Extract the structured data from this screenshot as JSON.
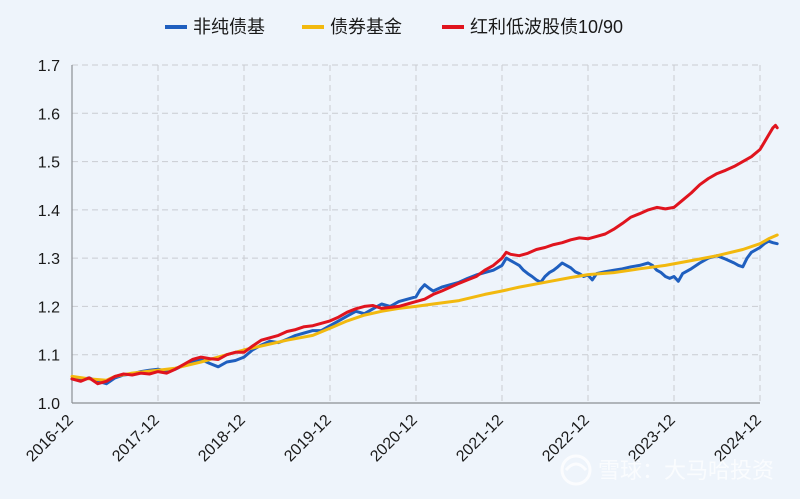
{
  "chart_data": {
    "type": "line",
    "title": "",
    "xlabel": "",
    "ylabel": "",
    "x_categories": [
      "2016-12",
      "2017-12",
      "2018-12",
      "2019-12",
      "2020-12",
      "2021-12",
      "2022-12",
      "2023-12",
      "2024-12"
    ],
    "ylim": [
      1.0,
      1.7
    ],
    "yticks": [
      "1.0",
      "1.1",
      "1.2",
      "1.3",
      "1.4",
      "1.5",
      "1.6",
      "1.7"
    ],
    "grid": true,
    "legend_position": "top",
    "series": [
      {
        "name": "非纯债基",
        "color": "#1f5fbf",
        "values": [
          [
            0.0,
            1.05
          ],
          [
            0.1,
            1.048
          ],
          [
            0.2,
            1.052
          ],
          [
            0.3,
            1.045
          ],
          [
            0.4,
            1.04
          ],
          [
            0.5,
            1.052
          ],
          [
            0.6,
            1.058
          ],
          [
            0.7,
            1.06
          ],
          [
            0.8,
            1.065
          ],
          [
            0.9,
            1.068
          ],
          [
            1.0,
            1.07
          ],
          [
            1.1,
            1.066
          ],
          [
            1.2,
            1.07
          ],
          [
            1.3,
            1.078
          ],
          [
            1.4,
            1.085
          ],
          [
            1.5,
            1.09
          ],
          [
            1.6,
            1.082
          ],
          [
            1.7,
            1.075
          ],
          [
            1.8,
            1.085
          ],
          [
            1.9,
            1.088
          ],
          [
            2.0,
            1.095
          ],
          [
            2.1,
            1.11
          ],
          [
            2.2,
            1.12
          ],
          [
            2.3,
            1.128
          ],
          [
            2.4,
            1.125
          ],
          [
            2.5,
            1.132
          ],
          [
            2.6,
            1.14
          ],
          [
            2.7,
            1.145
          ],
          [
            2.8,
            1.15
          ],
          [
            2.9,
            1.15
          ],
          [
            3.0,
            1.16
          ],
          [
            3.1,
            1.17
          ],
          [
            3.2,
            1.18
          ],
          [
            3.3,
            1.19
          ],
          [
            3.4,
            1.185
          ],
          [
            3.5,
            1.195
          ],
          [
            3.6,
            1.205
          ],
          [
            3.7,
            1.2
          ],
          [
            3.8,
            1.21
          ],
          [
            3.9,
            1.215
          ],
          [
            4.0,
            1.22
          ],
          [
            4.05,
            1.235
          ],
          [
            4.1,
            1.245
          ],
          [
            4.15,
            1.238
          ],
          [
            4.2,
            1.232
          ],
          [
            4.3,
            1.24
          ],
          [
            4.4,
            1.245
          ],
          [
            4.5,
            1.25
          ],
          [
            4.6,
            1.258
          ],
          [
            4.7,
            1.265
          ],
          [
            4.8,
            1.27
          ],
          [
            4.9,
            1.275
          ],
          [
            5.0,
            1.285
          ],
          [
            5.05,
            1.3
          ],
          [
            5.1,
            1.295
          ],
          [
            5.15,
            1.29
          ],
          [
            5.2,
            1.285
          ],
          [
            5.25,
            1.275
          ],
          [
            5.3,
            1.268
          ],
          [
            5.35,
            1.262
          ],
          [
            5.4,
            1.255
          ],
          [
            5.45,
            1.25
          ],
          [
            5.5,
            1.262
          ],
          [
            5.55,
            1.27
          ],
          [
            5.6,
            1.275
          ],
          [
            5.65,
            1.282
          ],
          [
            5.7,
            1.29
          ],
          [
            5.75,
            1.285
          ],
          [
            5.8,
            1.28
          ],
          [
            5.85,
            1.272
          ],
          [
            5.9,
            1.268
          ],
          [
            5.95,
            1.262
          ],
          [
            6.0,
            1.265
          ],
          [
            6.05,
            1.255
          ],
          [
            6.1,
            1.268
          ],
          [
            6.2,
            1.272
          ],
          [
            6.3,
            1.275
          ],
          [
            6.4,
            1.278
          ],
          [
            6.5,
            1.282
          ],
          [
            6.6,
            1.285
          ],
          [
            6.7,
            1.29
          ],
          [
            6.75,
            1.285
          ],
          [
            6.8,
            1.275
          ],
          [
            6.85,
            1.27
          ],
          [
            6.9,
            1.262
          ],
          [
            6.95,
            1.258
          ],
          [
            7.0,
            1.262
          ],
          [
            7.05,
            1.252
          ],
          [
            7.1,
            1.268
          ],
          [
            7.2,
            1.278
          ],
          [
            7.3,
            1.29
          ],
          [
            7.4,
            1.3
          ],
          [
            7.5,
            1.305
          ],
          [
            7.6,
            1.298
          ],
          [
            7.7,
            1.29
          ],
          [
            7.75,
            1.285
          ],
          [
            7.8,
            1.282
          ],
          [
            7.85,
            1.3
          ],
          [
            7.9,
            1.312
          ],
          [
            8.0,
            1.322
          ],
          [
            8.05,
            1.33
          ],
          [
            8.1,
            1.335
          ],
          [
            8.15,
            1.332
          ],
          [
            8.2,
            1.33
          ]
        ]
      },
      {
        "name": "债券基金",
        "color": "#f2b90f",
        "values": [
          [
            0.0,
            1.055
          ],
          [
            0.2,
            1.05
          ],
          [
            0.4,
            1.047
          ],
          [
            0.5,
            1.055
          ],
          [
            0.7,
            1.062
          ],
          [
            1.0,
            1.068
          ],
          [
            1.2,
            1.072
          ],
          [
            1.5,
            1.085
          ],
          [
            1.7,
            1.095
          ],
          [
            2.0,
            1.11
          ],
          [
            2.2,
            1.118
          ],
          [
            2.5,
            1.13
          ],
          [
            2.8,
            1.14
          ],
          [
            3.0,
            1.155
          ],
          [
            3.2,
            1.17
          ],
          [
            3.4,
            1.182
          ],
          [
            3.6,
            1.19
          ],
          [
            3.8,
            1.196
          ],
          [
            4.0,
            1.2
          ],
          [
            4.2,
            1.205
          ],
          [
            4.5,
            1.212
          ],
          [
            4.8,
            1.225
          ],
          [
            5.0,
            1.232
          ],
          [
            5.2,
            1.24
          ],
          [
            5.5,
            1.25
          ],
          [
            5.8,
            1.26
          ],
          [
            6.0,
            1.266
          ],
          [
            6.3,
            1.27
          ],
          [
            6.6,
            1.278
          ],
          [
            6.9,
            1.285
          ],
          [
            7.2,
            1.295
          ],
          [
            7.5,
            1.305
          ],
          [
            7.8,
            1.318
          ],
          [
            8.0,
            1.33
          ],
          [
            8.1,
            1.34
          ],
          [
            8.2,
            1.348
          ]
        ]
      },
      {
        "name": "红利低波股债10/90",
        "color": "#e0141e",
        "values": [
          [
            0.0,
            1.05
          ],
          [
            0.1,
            1.045
          ],
          [
            0.2,
            1.052
          ],
          [
            0.3,
            1.04
          ],
          [
            0.4,
            1.045
          ],
          [
            0.5,
            1.055
          ],
          [
            0.6,
            1.06
          ],
          [
            0.7,
            1.058
          ],
          [
            0.8,
            1.062
          ],
          [
            0.9,
            1.06
          ],
          [
            1.0,
            1.065
          ],
          [
            1.1,
            1.062
          ],
          [
            1.2,
            1.07
          ],
          [
            1.3,
            1.08
          ],
          [
            1.4,
            1.09
          ],
          [
            1.5,
            1.095
          ],
          [
            1.6,
            1.092
          ],
          [
            1.7,
            1.09
          ],
          [
            1.8,
            1.1
          ],
          [
            1.9,
            1.105
          ],
          [
            2.0,
            1.105
          ],
          [
            2.1,
            1.118
          ],
          [
            2.2,
            1.13
          ],
          [
            2.3,
            1.135
          ],
          [
            2.4,
            1.14
          ],
          [
            2.5,
            1.148
          ],
          [
            2.6,
            1.152
          ],
          [
            2.7,
            1.158
          ],
          [
            2.8,
            1.16
          ],
          [
            2.9,
            1.165
          ],
          [
            3.0,
            1.17
          ],
          [
            3.1,
            1.178
          ],
          [
            3.2,
            1.188
          ],
          [
            3.3,
            1.195
          ],
          [
            3.4,
            1.2
          ],
          [
            3.5,
            1.202
          ],
          [
            3.6,
            1.196
          ],
          [
            3.7,
            1.198
          ],
          [
            3.8,
            1.2
          ],
          [
            3.9,
            1.205
          ],
          [
            4.0,
            1.21
          ],
          [
            4.1,
            1.215
          ],
          [
            4.2,
            1.225
          ],
          [
            4.3,
            1.232
          ],
          [
            4.4,
            1.24
          ],
          [
            4.5,
            1.248
          ],
          [
            4.6,
            1.255
          ],
          [
            4.7,
            1.262
          ],
          [
            4.8,
            1.275
          ],
          [
            4.9,
            1.285
          ],
          [
            5.0,
            1.3
          ],
          [
            5.05,
            1.312
          ],
          [
            5.1,
            1.308
          ],
          [
            5.2,
            1.305
          ],
          [
            5.3,
            1.31
          ],
          [
            5.4,
            1.318
          ],
          [
            5.5,
            1.322
          ],
          [
            5.6,
            1.328
          ],
          [
            5.7,
            1.332
          ],
          [
            5.8,
            1.338
          ],
          [
            5.9,
            1.342
          ],
          [
            6.0,
            1.34
          ],
          [
            6.1,
            1.345
          ],
          [
            6.2,
            1.35
          ],
          [
            6.3,
            1.36
          ],
          [
            6.4,
            1.372
          ],
          [
            6.5,
            1.385
          ],
          [
            6.6,
            1.392
          ],
          [
            6.7,
            1.4
          ],
          [
            6.8,
            1.405
          ],
          [
            6.9,
            1.402
          ],
          [
            7.0,
            1.405
          ],
          [
            7.1,
            1.42
          ],
          [
            7.2,
            1.435
          ],
          [
            7.3,
            1.452
          ],
          [
            7.4,
            1.465
          ],
          [
            7.5,
            1.475
          ],
          [
            7.6,
            1.482
          ],
          [
            7.7,
            1.49
          ],
          [
            7.8,
            1.5
          ],
          [
            7.9,
            1.51
          ],
          [
            8.0,
            1.525
          ],
          [
            8.05,
            1.54
          ],
          [
            8.1,
            1.555
          ],
          [
            8.15,
            1.57
          ],
          [
            8.18,
            1.575
          ],
          [
            8.2,
            1.57
          ]
        ]
      }
    ]
  },
  "watermark": {
    "text": "雪球：大马哈投资",
    "icon": "snowball-logo-icon"
  }
}
